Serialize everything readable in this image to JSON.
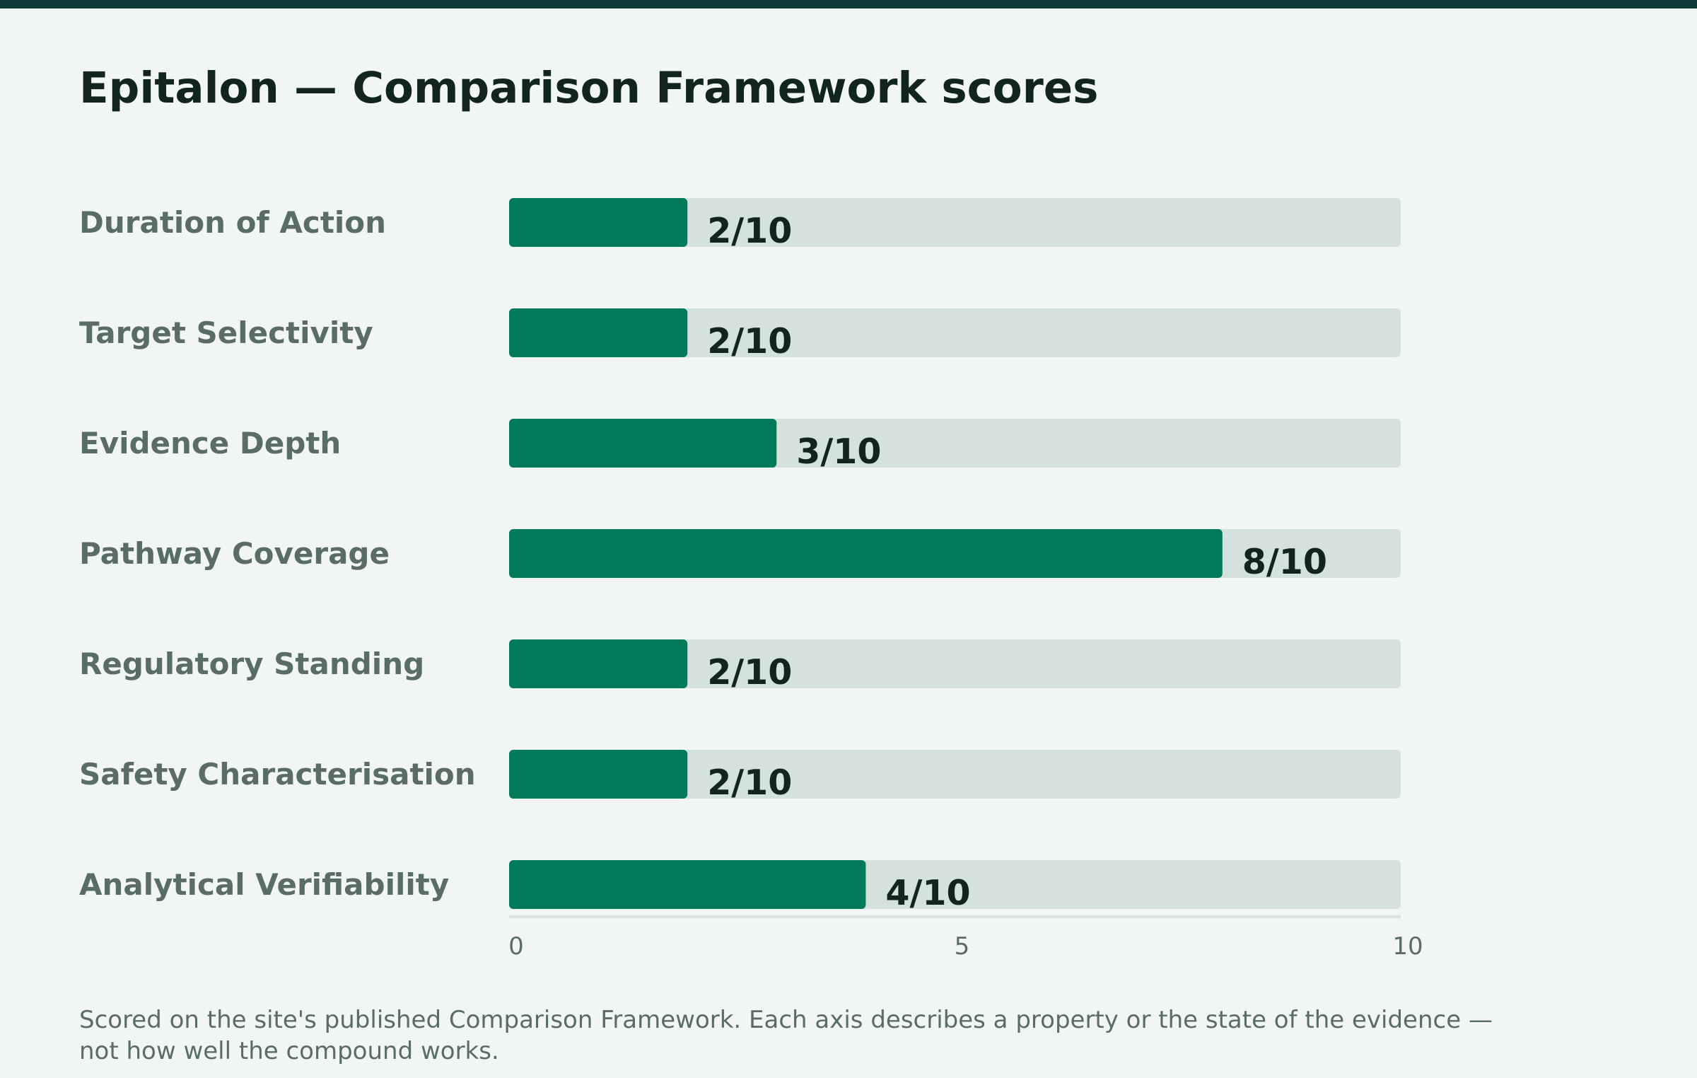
{
  "title": "Epitalon — Comparison Framework scores",
  "footnote": "Scored on the site's published Comparison Framework. Each axis describes a property or the state of the evidence — not how well the compound works.",
  "colors": {
    "accent": "#007a5a",
    "track": "#d4e1de",
    "label": "#5a6c67",
    "value": "#112420",
    "axis": "#d4e1de",
    "tick": "#5a6c67",
    "topbar": "#0f3b3b",
    "background": "#f1f6f4"
  },
  "chart_data": {
    "type": "bar",
    "orientation": "horizontal",
    "categories": [
      "Duration of Action",
      "Target Selectivity",
      "Evidence Depth",
      "Pathway Coverage",
      "Regulatory Standing",
      "Safety Characterisation",
      "Analytical Verifiability"
    ],
    "values": [
      2,
      2,
      3,
      8,
      2,
      2,
      4
    ],
    "value_labels": [
      "2/10",
      "2/10",
      "3/10",
      "8/10",
      "2/10",
      "2/10",
      "4/10"
    ],
    "xlim": [
      0,
      10
    ],
    "x_ticks": [
      0,
      5,
      10
    ],
    "x_tick_labels": [
      "0",
      "5",
      "10"
    ],
    "grid": false,
    "legend": "none"
  }
}
